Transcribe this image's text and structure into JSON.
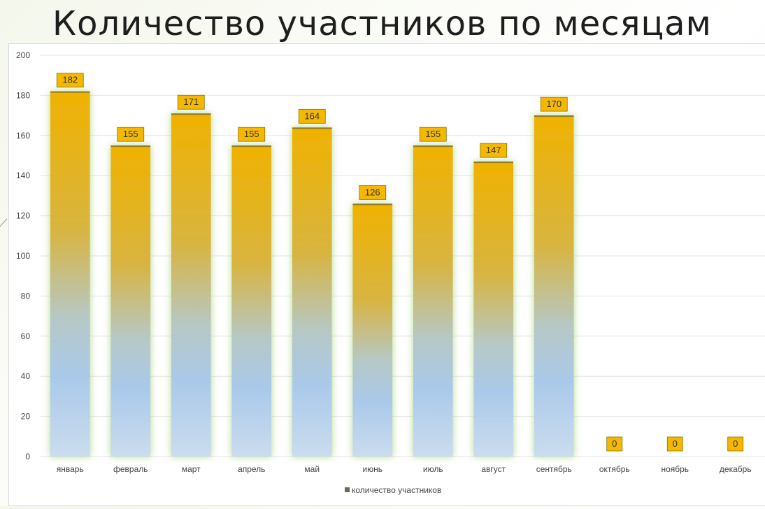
{
  "title": "Количество участников по месяцам",
  "chart_data": {
    "type": "bar",
    "categories": [
      "январь",
      "февраль",
      "март",
      "апрель",
      "май",
      "июнь",
      "июль",
      "август",
      "сентябрь",
      "октябрь",
      "ноябрь",
      "декабрь"
    ],
    "series": [
      {
        "name": "количество участников",
        "values": [
          182,
          155,
          171,
          155,
          164,
          126,
          155,
          147,
          170,
          0,
          0,
          0
        ]
      }
    ],
    "ylim": [
      0,
      200
    ],
    "yticks": [
      0,
      20,
      40,
      60,
      80,
      100,
      120,
      140,
      160,
      180,
      200
    ],
    "grid": true,
    "legend": "bottom",
    "colors": {
      "bar_top": "#efb200",
      "bar_bottom": "#c8dcf0",
      "glow": "#a6d07a",
      "label_fill": "#f5b800",
      "label_border": "#8a7000",
      "grid": "#e4e4e4",
      "legend_marker": "#5f6f58"
    }
  }
}
